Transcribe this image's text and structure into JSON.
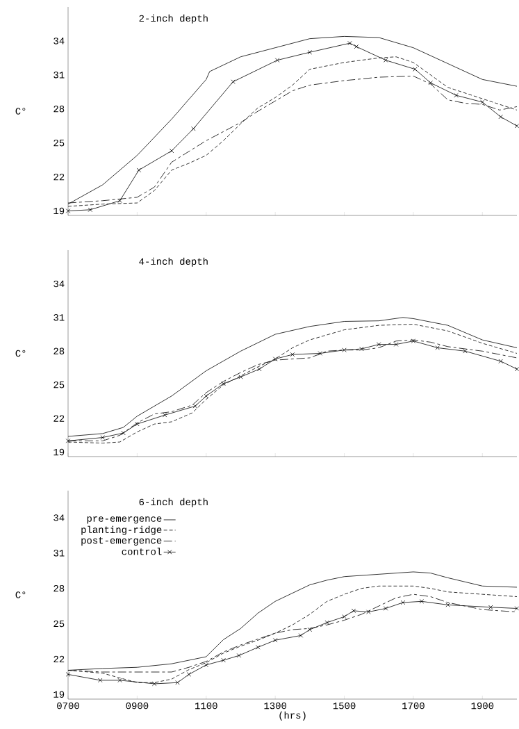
{
  "chart_data": [
    {
      "type": "line",
      "title": "2-inch depth",
      "ylabel": "C°",
      "tick_labels": "y",
      "legend": false,
      "xlim": [
        700,
        2000
      ],
      "ylim": [
        18.6,
        37
      ],
      "xticks": [
        700,
        900,
        1100,
        1300,
        1500,
        1700,
        1900
      ],
      "yticks": [
        19,
        22,
        25,
        28,
        31,
        34
      ],
      "series": [
        {
          "color": "#000000",
          "line_style": "solid",
          "marker": "none",
          "x": [
            700,
            800,
            900,
            1000,
            1100,
            1110,
            1200,
            1300,
            1400,
            1500,
            1600,
            1700,
            1800,
            1900,
            2000
          ],
          "values": [
            19.6,
            21.3,
            23.9,
            27.1,
            30.6,
            31.3,
            32.6,
            33.4,
            34.2,
            34.4,
            34.3,
            33.4,
            32.0,
            30.6,
            30.0
          ]
        },
        {
          "color": "#000000",
          "line_style": "dashed",
          "marker": "none",
          "x": [
            700,
            800,
            900,
            950,
            1000,
            1050,
            1100,
            1150,
            1200,
            1250,
            1300,
            1350,
            1400,
            1500,
            1600,
            1650,
            1700,
            1800,
            1900,
            2000
          ],
          "values": [
            19.4,
            19.6,
            19.7,
            20.8,
            22.6,
            23.2,
            23.9,
            25.2,
            26.7,
            28.1,
            29.0,
            30.1,
            31.5,
            32.1,
            32.5,
            32.6,
            32.1,
            29.9,
            28.9,
            27.9
          ]
        },
        {
          "color": "#000000",
          "line_style": "dashdot",
          "marker": "none",
          "x": [
            700,
            800,
            900,
            950,
            1000,
            1100,
            1150,
            1200,
            1250,
            1300,
            1350,
            1400,
            1500,
            1600,
            1700,
            1750,
            1800,
            1850,
            1900,
            1950,
            2000
          ],
          "values": [
            19.7,
            19.9,
            20.2,
            21.1,
            23.3,
            25.2,
            26.0,
            26.8,
            27.8,
            28.7,
            29.6,
            30.1,
            30.5,
            30.8,
            30.9,
            30.2,
            28.8,
            28.5,
            28.4,
            27.9,
            28.2
          ]
        },
        {
          "color": "#000000",
          "line_style": "solid",
          "marker": "cross",
          "x": [
            700,
            764,
            850,
            905,
            1000,
            1063,
            1178,
            1306,
            1400,
            1516,
            1535,
            1620,
            1705,
            1750,
            1824,
            1900,
            1953,
            2000
          ],
          "values": [
            19.0,
            19.1,
            19.9,
            22.6,
            24.3,
            26.25,
            30.4,
            32.3,
            33.0,
            33.8,
            33.5,
            32.3,
            31.5,
            30.3,
            29.2,
            28.6,
            27.3,
            26.5
          ]
        }
      ]
    },
    {
      "type": "line",
      "title": "4-inch depth",
      "ylabel": "C°",
      "tick_labels": "y",
      "legend": false,
      "xlim": [
        700,
        2000
      ],
      "ylim": [
        18.6,
        37
      ],
      "xticks": [
        700,
        900,
        1100,
        1300,
        1500,
        1700,
        1900
      ],
      "yticks": [
        19,
        22,
        25,
        28,
        31,
        34
      ],
      "series": [
        {
          "color": "#000000",
          "line_style": "solid",
          "marker": "none",
          "x": [
            700,
            800,
            860,
            900,
            1000,
            1100,
            1200,
            1300,
            1400,
            1500,
            1600,
            1670,
            1700,
            1800,
            1900,
            2000
          ],
          "values": [
            20.4,
            20.65,
            21.2,
            22.2,
            24.0,
            26.25,
            28.0,
            29.5,
            30.2,
            30.65,
            30.7,
            31.0,
            30.9,
            30.3,
            29.0,
            28.3
          ]
        },
        {
          "color": "#000000",
          "line_style": "dashed",
          "marker": "none",
          "x": [
            700,
            800,
            850,
            900,
            950,
            1000,
            1060,
            1100,
            1150,
            1200,
            1250,
            1300,
            1350,
            1400,
            1500,
            1600,
            1700,
            1800,
            1900,
            2000
          ],
          "values": [
            19.9,
            19.8,
            19.9,
            20.8,
            21.5,
            21.7,
            22.5,
            23.7,
            25.0,
            25.8,
            26.6,
            27.3,
            28.3,
            29.0,
            29.9,
            30.3,
            30.4,
            29.8,
            28.7,
            27.8
          ]
        },
        {
          "color": "#000000",
          "line_style": "dashdot",
          "marker": "none",
          "x": [
            700,
            800,
            850,
            900,
            950,
            1000,
            1060,
            1100,
            1150,
            1200,
            1250,
            1300,
            1350,
            1400,
            1450,
            1500,
            1550,
            1600,
            1650,
            1700,
            1750,
            1800,
            1900,
            2000
          ],
          "values": [
            20.0,
            20.0,
            20.5,
            21.6,
            22.4,
            22.6,
            23.2,
            24.3,
            25.3,
            26.1,
            26.8,
            27.2,
            27.3,
            27.4,
            28.0,
            28.1,
            28.1,
            28.3,
            28.9,
            29.0,
            28.8,
            28.4,
            28.0,
            27.4
          ]
        },
        {
          "color": "#000000",
          "line_style": "solid",
          "marker": "cross",
          "x": [
            700,
            800,
            860,
            900,
            980,
            1068,
            1100,
            1150,
            1200,
            1254,
            1300,
            1350,
            1430,
            1500,
            1550,
            1600,
            1650,
            1700,
            1770,
            1850,
            1953,
            2000
          ],
          "values": [
            20.0,
            20.3,
            20.7,
            21.5,
            22.3,
            23.1,
            24.0,
            25.1,
            25.7,
            26.4,
            27.3,
            27.7,
            27.8,
            28.1,
            28.2,
            28.6,
            28.6,
            28.9,
            28.3,
            28.0,
            27.1,
            26.4
          ]
        }
      ]
    },
    {
      "type": "line",
      "title": "6-inch depth",
      "ylabel": "C°",
      "xlabel": "(hrs)",
      "legend": "top left",
      "xlim": [
        700,
        2000
      ],
      "ylim": [
        18.6,
        36.3
      ],
      "xticks": [
        {
          "value": 700,
          "label": "0700"
        },
        {
          "value": 900,
          "label": "0900"
        },
        {
          "value": 1100,
          "label": "1100"
        },
        {
          "value": 1300,
          "label": "1300"
        },
        {
          "value": 1500,
          "label": "1500"
        },
        {
          "value": 1700,
          "label": "1700"
        },
        {
          "value": 1900,
          "label": "1900"
        }
      ],
      "yticks": [
        19,
        22,
        25,
        28,
        31,
        34
      ],
      "series": [
        {
          "name": "pre-emergence",
          "color": "#000000",
          "line_style": "solid",
          "marker": "none",
          "x": [
            700,
            800,
            900,
            1000,
            1100,
            1150,
            1200,
            1250,
            1300,
            1350,
            1400,
            1450,
            1500,
            1600,
            1700,
            1750,
            1800,
            1900,
            2000
          ],
          "values": [
            21.05,
            21.2,
            21.3,
            21.6,
            22.2,
            23.65,
            24.6,
            25.9,
            26.9,
            27.6,
            28.3,
            28.7,
            29.0,
            29.2,
            29.4,
            29.3,
            28.9,
            28.2,
            28.1
          ]
        },
        {
          "name": "planting-ridge",
          "color": "#000000",
          "line_style": "dashed",
          "marker": "none",
          "x": [
            700,
            800,
            850,
            900,
            950,
            1000,
            1050,
            1100,
            1150,
            1200,
            1250,
            1300,
            1350,
            1400,
            1450,
            1500,
            1550,
            1600,
            1700,
            1750,
            1800,
            1900,
            2000
          ],
          "values": [
            21.05,
            20.8,
            20.4,
            20.0,
            20.0,
            20.3,
            21.1,
            21.7,
            22.5,
            23.1,
            23.6,
            24.2,
            24.9,
            25.8,
            26.9,
            27.5,
            28.0,
            28.2,
            28.2,
            28.0,
            27.7,
            27.5,
            27.3
          ]
        },
        {
          "name": "post-emergence",
          "color": "#000000",
          "line_style": "dashdot",
          "marker": "none",
          "x": [
            700,
            800,
            1000,
            1050,
            1100,
            1150,
            1200,
            1250,
            1300,
            1350,
            1400,
            1450,
            1500,
            1550,
            1600,
            1650,
            1700,
            1750,
            1800,
            1900,
            2000
          ],
          "values": [
            21.05,
            20.9,
            20.9,
            21.3,
            21.8,
            22.6,
            23.2,
            23.7,
            24.2,
            24.5,
            24.6,
            24.9,
            25.3,
            25.8,
            26.5,
            27.2,
            27.5,
            27.3,
            26.8,
            26.2,
            26.0
          ]
        },
        {
          "name": "control",
          "color": "#000000",
          "line_style": "solid",
          "marker": "cross",
          "x": [
            700,
            793,
            850,
            950,
            1017,
            1050,
            1100,
            1150,
            1195,
            1250,
            1300,
            1374,
            1400,
            1450,
            1500,
            1527,
            1570,
            1620,
            1670,
            1724,
            1800,
            1924,
            2000
          ],
          "values": [
            20.7,
            20.2,
            20.2,
            19.9,
            20.0,
            20.7,
            21.5,
            21.9,
            22.3,
            23.0,
            23.6,
            24.0,
            24.5,
            25.1,
            25.6,
            26.1,
            26.0,
            26.3,
            26.8,
            26.9,
            26.6,
            26.4,
            26.3
          ]
        }
      ]
    }
  ]
}
